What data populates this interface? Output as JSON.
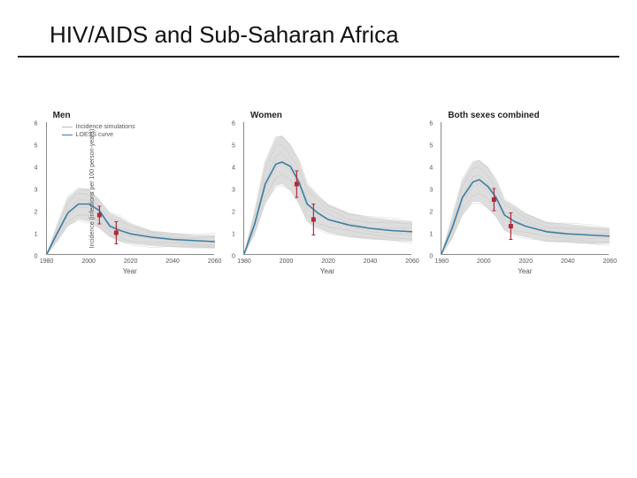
{
  "slide": {
    "title": "HIV/AIDS and Sub-Saharan Africa"
  },
  "chart_common": {
    "type": "line",
    "xlim": [
      1980,
      2060
    ],
    "ylim": [
      0,
      6
    ],
    "xticks": [
      1980,
      2000,
      2020,
      2040,
      2060
    ],
    "yticks": [
      0,
      1,
      2,
      3,
      4,
      5,
      6
    ],
    "xlabel": "Year",
    "ylabel": "Incidence (infections per 100 person-years)",
    "band_color": "#cfcfcf",
    "loess_color": "#3b7ea1",
    "marker_color": "#b02a3a",
    "axis_color": "#888888",
    "tick_fontsize": 7,
    "label_fontsize": 8,
    "title_fontsize": 10,
    "background_color": "#ffffff",
    "legend": {
      "items": [
        {
          "label": "Incidence simulations",
          "style": "sim"
        },
        {
          "label": "LOESS curve",
          "style": "loess"
        }
      ]
    }
  },
  "panels": [
    {
      "title": "Men",
      "show_legend": true,
      "show_ylabel": true,
      "band_upper": [
        [
          1980,
          0.1
        ],
        [
          1985,
          1.4
        ],
        [
          1990,
          2.6
        ],
        [
          1995,
          3.0
        ],
        [
          2000,
          3.0
        ],
        [
          2005,
          2.5
        ],
        [
          2010,
          1.9
        ],
        [
          2015,
          1.7
        ],
        [
          2020,
          1.4
        ],
        [
          2030,
          1.1
        ],
        [
          2040,
          1.0
        ],
        [
          2050,
          0.9
        ],
        [
          2060,
          0.9
        ]
      ],
      "band_lower": [
        [
          1980,
          0.0
        ],
        [
          1985,
          0.6
        ],
        [
          1990,
          1.3
        ],
        [
          1995,
          1.6
        ],
        [
          2000,
          1.5
        ],
        [
          2005,
          1.2
        ],
        [
          2010,
          0.8
        ],
        [
          2015,
          0.6
        ],
        [
          2020,
          0.5
        ],
        [
          2030,
          0.4
        ],
        [
          2040,
          0.35
        ],
        [
          2050,
          0.3
        ],
        [
          2060,
          0.3
        ]
      ],
      "loess": [
        [
          1980,
          0.05
        ],
        [
          1985,
          1.0
        ],
        [
          1990,
          1.9
        ],
        [
          1995,
          2.3
        ],
        [
          2000,
          2.3
        ],
        [
          2005,
          2.0
        ],
        [
          2010,
          1.3
        ],
        [
          2015,
          1.1
        ],
        [
          2020,
          0.95
        ],
        [
          2030,
          0.8
        ],
        [
          2040,
          0.7
        ],
        [
          2050,
          0.65
        ],
        [
          2060,
          0.6
        ]
      ],
      "markers": [
        {
          "x": 2005,
          "y": 1.8,
          "err": 0.4
        },
        {
          "x": 2013,
          "y": 1.0,
          "err": 0.5
        }
      ]
    },
    {
      "title": "Women",
      "show_legend": false,
      "show_ylabel": false,
      "band_upper": [
        [
          1980,
          0.1
        ],
        [
          1985,
          2.0
        ],
        [
          1990,
          4.2
        ],
        [
          1995,
          5.3
        ],
        [
          1998,
          5.4
        ],
        [
          2002,
          5.0
        ],
        [
          2006,
          4.3
        ],
        [
          2010,
          3.2
        ],
        [
          2015,
          2.7
        ],
        [
          2020,
          2.3
        ],
        [
          2030,
          1.9
        ],
        [
          2040,
          1.7
        ],
        [
          2050,
          1.6
        ],
        [
          2060,
          1.5
        ]
      ],
      "band_lower": [
        [
          1980,
          0.0
        ],
        [
          1985,
          0.9
        ],
        [
          1990,
          2.3
        ],
        [
          1995,
          3.1
        ],
        [
          1998,
          3.2
        ],
        [
          2002,
          2.9
        ],
        [
          2006,
          2.3
        ],
        [
          2010,
          1.5
        ],
        [
          2015,
          1.2
        ],
        [
          2020,
          1.0
        ],
        [
          2030,
          0.8
        ],
        [
          2040,
          0.7
        ],
        [
          2050,
          0.65
        ],
        [
          2060,
          0.6
        ]
      ],
      "loess": [
        [
          1980,
          0.05
        ],
        [
          1985,
          1.4
        ],
        [
          1990,
          3.2
        ],
        [
          1995,
          4.1
        ],
        [
          1998,
          4.2
        ],
        [
          2002,
          4.0
        ],
        [
          2006,
          3.3
        ],
        [
          2010,
          2.3
        ],
        [
          2015,
          1.9
        ],
        [
          2020,
          1.6
        ],
        [
          2030,
          1.35
        ],
        [
          2040,
          1.2
        ],
        [
          2050,
          1.1
        ],
        [
          2060,
          1.05
        ]
      ],
      "markers": [
        {
          "x": 2005,
          "y": 3.2,
          "err": 0.6
        },
        {
          "x": 2013,
          "y": 1.6,
          "err": 0.7
        }
      ]
    },
    {
      "title": "Both sexes combined",
      "show_legend": false,
      "show_ylabel": false,
      "band_upper": [
        [
          1980,
          0.1
        ],
        [
          1985,
          1.7
        ],
        [
          1990,
          3.4
        ],
        [
          1995,
          4.2
        ],
        [
          1998,
          4.3
        ],
        [
          2002,
          4.0
        ],
        [
          2006,
          3.4
        ],
        [
          2010,
          2.5
        ],
        [
          2015,
          2.2
        ],
        [
          2020,
          1.9
        ],
        [
          2030,
          1.5
        ],
        [
          2040,
          1.4
        ],
        [
          2050,
          1.3
        ],
        [
          2060,
          1.2
        ]
      ],
      "band_lower": [
        [
          1980,
          0.0
        ],
        [
          1985,
          0.7
        ],
        [
          1990,
          1.8
        ],
        [
          1995,
          2.4
        ],
        [
          1998,
          2.4
        ],
        [
          2002,
          2.1
        ],
        [
          2006,
          1.7
        ],
        [
          2010,
          1.1
        ],
        [
          2015,
          0.9
        ],
        [
          2020,
          0.8
        ],
        [
          2030,
          0.6
        ],
        [
          2040,
          0.55
        ],
        [
          2050,
          0.5
        ],
        [
          2060,
          0.5
        ]
      ],
      "loess": [
        [
          1980,
          0.05
        ],
        [
          1985,
          1.2
        ],
        [
          1990,
          2.6
        ],
        [
          1995,
          3.3
        ],
        [
          1998,
          3.4
        ],
        [
          2002,
          3.1
        ],
        [
          2006,
          2.6
        ],
        [
          2010,
          1.8
        ],
        [
          2015,
          1.5
        ],
        [
          2020,
          1.3
        ],
        [
          2030,
          1.05
        ],
        [
          2040,
          0.95
        ],
        [
          2050,
          0.9
        ],
        [
          2060,
          0.85
        ]
      ],
      "markers": [
        {
          "x": 2005,
          "y": 2.5,
          "err": 0.5
        },
        {
          "x": 2013,
          "y": 1.3,
          "err": 0.6
        }
      ]
    }
  ]
}
